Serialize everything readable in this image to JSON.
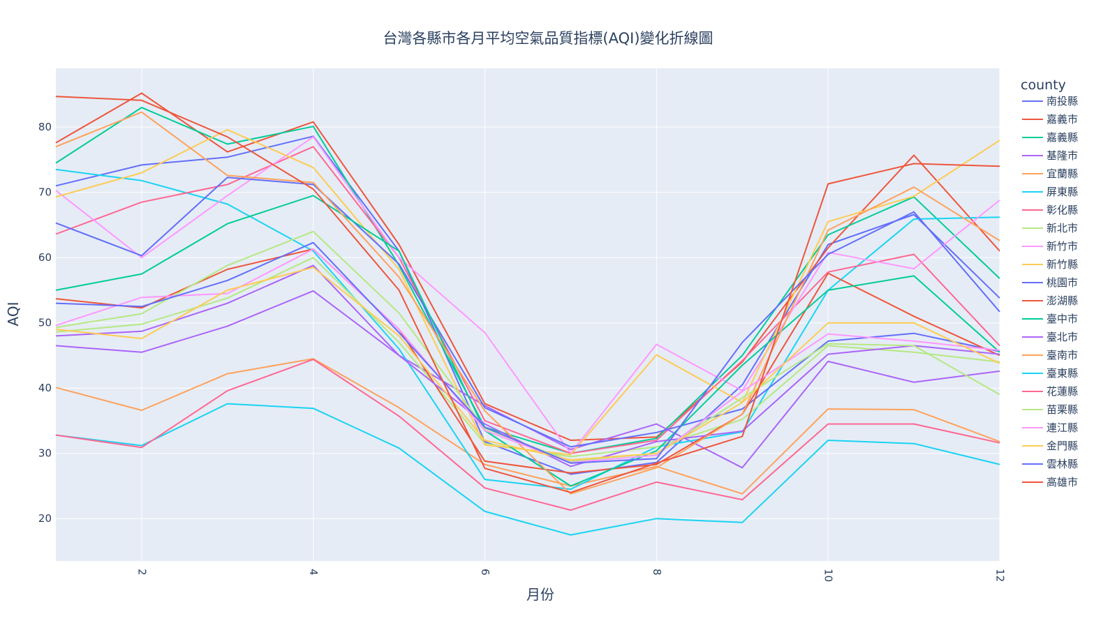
{
  "chart_data": {
    "type": "line",
    "title": "台灣各縣市各月平均空氣品質指標(AQI)變化折線圖",
    "xlabel": "月份",
    "ylabel": "AQI",
    "xlim": [
      1,
      12
    ],
    "ylim": [
      13.5,
      89
    ],
    "x_ticks": [
      2,
      4,
      6,
      8,
      10,
      12
    ],
    "y_ticks": [
      20,
      30,
      40,
      50,
      60,
      70,
      80
    ],
    "grid": true,
    "legend_title": "county",
    "legend_position": "right",
    "x": [
      1,
      2,
      3,
      4,
      5,
      6,
      7,
      8,
      9,
      10,
      11,
      12
    ],
    "series": [
      {
        "name": "南投縣",
        "color": "#636efa",
        "values": [
          71.0,
          74.2,
          75.4,
          78.6,
          61.0,
          31.8,
          26.8,
          28.6,
          40.5,
          62.0,
          66.6,
          53.8
        ]
      },
      {
        "name": "嘉義市",
        "color": "#EF553B",
        "values": [
          77.6,
          85.2,
          76.2,
          80.8,
          62.0,
          37.6,
          32.0,
          32.5,
          44.0,
          61.5,
          75.7,
          61.0
        ]
      },
      {
        "name": "嘉義縣",
        "color": "#00cc96",
        "values": [
          74.5,
          83.0,
          77.4,
          80.1,
          58.8,
          34.0,
          30.0,
          32.3,
          45.0,
          63.5,
          69.3,
          56.8
        ]
      },
      {
        "name": "基隆市",
        "color": "#ab63fa",
        "values": [
          46.5,
          45.5,
          49.5,
          54.9,
          45.0,
          37.3,
          30.6,
          34.5,
          27.8,
          44.1,
          40.9,
          42.6
        ]
      },
      {
        "name": "宜蘭縣",
        "color": "#FFA15A",
        "values": [
          40.1,
          36.6,
          42.2,
          44.5,
          37.0,
          28.3,
          25.0,
          28.0,
          23.8,
          36.8,
          36.7,
          31.8
        ]
      },
      {
        "name": "屏東縣",
        "color": "#19d3f3",
        "values": [
          73.5,
          71.8,
          68.2,
          61.0,
          46.0,
          26.0,
          24.5,
          31.0,
          33.3,
          55.0,
          65.9,
          66.2
        ]
      },
      {
        "name": "彰化縣",
        "color": "#FF6692",
        "values": [
          63.6,
          68.5,
          71.2,
          77.0,
          60.0,
          35.0,
          30.0,
          32.0,
          44.2,
          57.8,
          60.5,
          46.5
        ]
      },
      {
        "name": "新北市",
        "color": "#B6E880",
        "values": [
          48.6,
          49.8,
          53.8,
          60.0,
          47.0,
          31.5,
          29.5,
          31.0,
          35.2,
          46.5,
          45.5,
          44.0
        ]
      },
      {
        "name": "新竹市",
        "color": "#FF97FF",
        "values": [
          70.3,
          60.0,
          69.5,
          78.5,
          60.0,
          48.5,
          30.0,
          46.7,
          39.6,
          60.8,
          58.3,
          68.8
        ]
      },
      {
        "name": "新竹縣",
        "color": "#FECB52",
        "values": [
          69.3,
          73.0,
          79.6,
          73.8,
          58.2,
          31.3,
          29.8,
          45.1,
          37.8,
          65.5,
          69.4,
          78.0
        ]
      },
      {
        "name": "桃園市",
        "color": "#636efa",
        "values": [
          65.3,
          60.3,
          72.3,
          71.2,
          59.0,
          37.0,
          31.0,
          33.2,
          36.8,
          47.2,
          48.4,
          45.6
        ]
      },
      {
        "name": "澎湖縣",
        "color": "#EF553B",
        "values": [
          53.7,
          52.3,
          58.2,
          61.3,
          49.0,
          28.8,
          27.0,
          28.3,
          36.0,
          57.6,
          51.0,
          45.0
        ]
      },
      {
        "name": "臺中市",
        "color": "#00cc96",
        "values": [
          55.0,
          57.5,
          65.2,
          69.5,
          61.0,
          33.5,
          25.0,
          30.4,
          43.5,
          55.0,
          57.2,
          45.5
        ]
      },
      {
        "name": "臺北市",
        "color": "#ab63fa",
        "values": [
          48.0,
          48.7,
          53.0,
          58.8,
          45.0,
          34.5,
          28.0,
          31.8,
          33.4,
          45.2,
          46.5,
          45.2
        ]
      },
      {
        "name": "臺南市",
        "color": "#FFA15A",
        "values": [
          77.0,
          82.3,
          72.6,
          71.5,
          57.0,
          36.5,
          23.8,
          27.8,
          36.0,
          64.2,
          70.8,
          62.6
        ]
      },
      {
        "name": "臺東縣",
        "color": "#19d3f3",
        "values": [
          32.8,
          31.2,
          37.6,
          36.9,
          30.8,
          21.1,
          17.5,
          20.0,
          19.4,
          32.0,
          31.5,
          28.3
        ]
      },
      {
        "name": "花蓮縣",
        "color": "#FF6692",
        "values": [
          32.8,
          30.9,
          39.6,
          44.4,
          35.7,
          24.7,
          21.3,
          25.6,
          22.9,
          34.5,
          34.5,
          31.6
        ]
      },
      {
        "name": "苗栗縣",
        "color": "#B6E880",
        "values": [
          49.3,
          51.4,
          58.8,
          64.0,
          51.5,
          33.8,
          28.8,
          30.0,
          38.5,
          46.8,
          46.5,
          39.0
        ]
      },
      {
        "name": "連江縣",
        "color": "#FF97FF",
        "values": [
          49.6,
          53.9,
          54.5,
          61.3,
          49.0,
          33.5,
          28.6,
          29.7,
          39.5,
          48.3,
          47.2,
          45.8
        ]
      },
      {
        "name": "金門縣",
        "color": "#FECB52",
        "values": [
          49.0,
          47.6,
          55.0,
          58.5,
          48.0,
          32.0,
          29.0,
          30.0,
          37.8,
          50.0,
          50.0,
          43.8
        ]
      },
      {
        "name": "雲林縣",
        "color": "#636efa",
        "values": [
          53.0,
          52.5,
          56.5,
          62.3,
          48.5,
          34.0,
          28.5,
          29.2,
          47.0,
          60.5,
          67.0,
          51.7
        ]
      },
      {
        "name": "高雄市",
        "color": "#EF553B",
        "values": [
          84.7,
          84.1,
          78.5,
          70.5,
          55.0,
          27.7,
          24.0,
          28.5,
          32.6,
          71.3,
          74.4,
          74.0
        ]
      }
    ]
  }
}
